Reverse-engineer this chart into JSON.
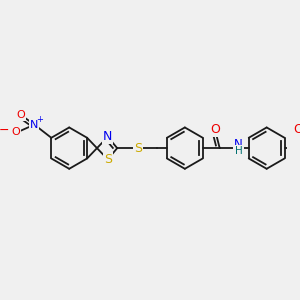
{
  "background_color": "#f0f0f0",
  "bond_color": "#1a1a1a",
  "atom_colors": {
    "S": "#ccaa00",
    "N": "#0000ee",
    "O": "#ee0000",
    "NH": "#007070",
    "minus": "#ee0000",
    "plus": "#0000ee"
  },
  "font_size": 7.5,
  "fig_size": [
    3.0,
    3.0
  ],
  "dpi": 100
}
